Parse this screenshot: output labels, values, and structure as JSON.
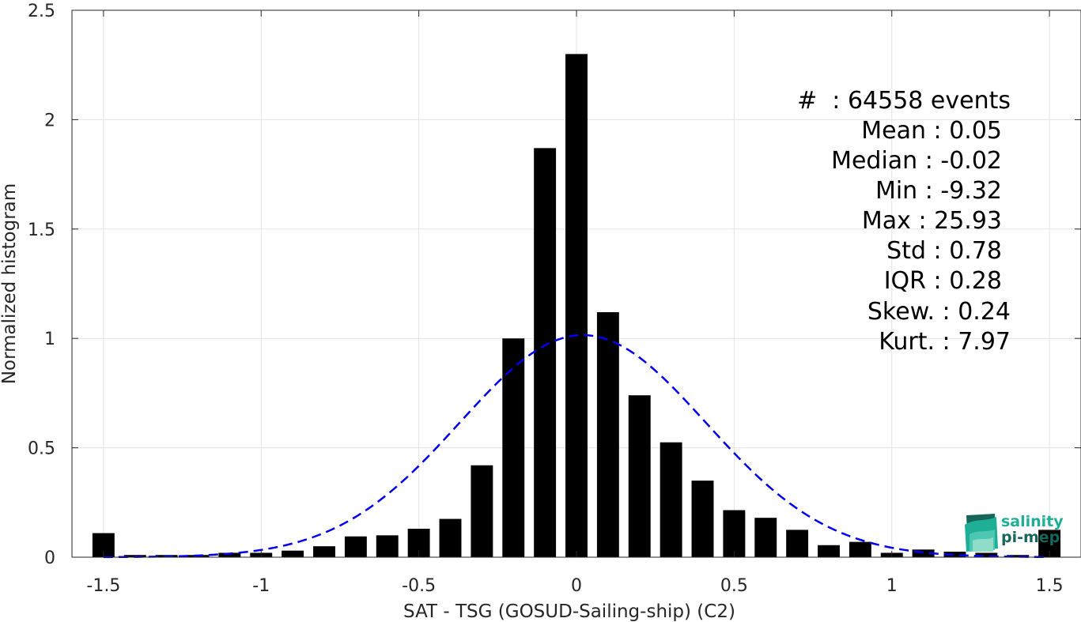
{
  "chart_data": {
    "type": "bar",
    "xlabel": "SAT - TSG (GOSUD-Sailing-ship) (C2)",
    "ylabel": "Normalized histogram",
    "xlim": [
      -1.6,
      1.6
    ],
    "ylim": [
      0,
      2.5
    ],
    "xticks": [
      -1.5,
      -1,
      -0.5,
      0,
      0.5,
      1,
      1.5
    ],
    "xtick_labels": [
      "-1.5",
      "-1",
      "-0.5",
      "0",
      "0.5",
      "1",
      "1.5"
    ],
    "yticks": [
      0,
      0.5,
      1,
      1.5,
      2,
      2.5
    ],
    "ytick_labels": [
      "0",
      "0.5",
      "1",
      "1.5",
      "2",
      "2.5"
    ],
    "grid": true,
    "bar_color": "#000000",
    "bar_width": 0.07,
    "x": [
      -1.5,
      -1.4,
      -1.3,
      -1.2,
      -1.1,
      -1.0,
      -0.9,
      -0.8,
      -0.7,
      -0.6,
      -0.5,
      -0.4,
      -0.3,
      -0.2,
      -0.1,
      0.0,
      0.1,
      0.2,
      0.3,
      0.4,
      0.5,
      0.6,
      0.7,
      0.8,
      0.9,
      1.0,
      1.1,
      1.2,
      1.3,
      1.4,
      1.5
    ],
    "values": [
      0.11,
      0.01,
      0.01,
      0.01,
      0.02,
      0.02,
      0.03,
      0.05,
      0.095,
      0.1,
      0.13,
      0.175,
      0.42,
      1.0,
      1.87,
      2.3,
      1.12,
      0.74,
      0.525,
      0.35,
      0.215,
      0.18,
      0.125,
      0.055,
      0.07,
      0.02,
      0.035,
      0.025,
      0.02,
      0.01,
      0.125
    ],
    "fit_curve": {
      "style": "dashed",
      "color": "#0000ee",
      "mean": 0.02,
      "peak": 1.015,
      "sigma": 0.39,
      "x_start": -1.5,
      "x_end": 1.5
    },
    "stats": {
      "count": "#  : 64558 events",
      "mean": "Mean : 0.05",
      "median": "Median : -0.02",
      "min": "Min : -9.32",
      "max": "Max : 25.93",
      "std": "Std : 0.78",
      "iqr": "IQR : 0.28",
      "skew": "Skew. : 0.24",
      "kurt": "Kurt. : 7.97"
    }
  },
  "logo": {
    "line1": "salinity",
    "line2": "pi-mep",
    "color1": "#1fae96",
    "color2": "#17665a"
  }
}
